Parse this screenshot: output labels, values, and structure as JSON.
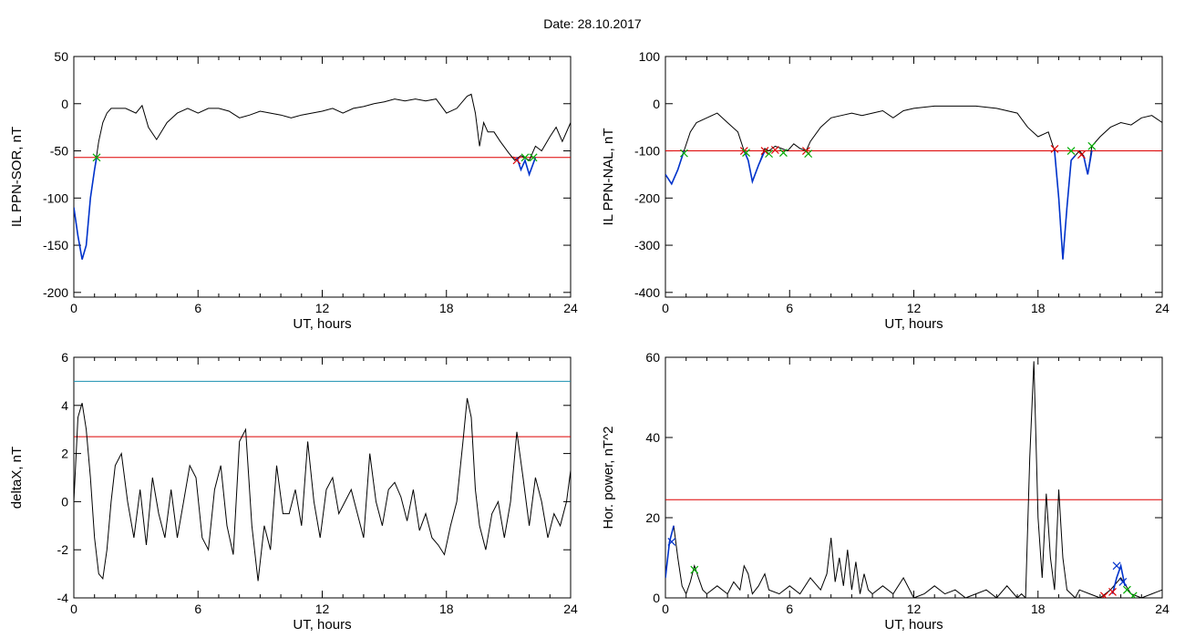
{
  "figure": {
    "title": "Date:  28.10.2017"
  },
  "chart_data": [
    {
      "id": "sor",
      "type": "line",
      "ylabel": "IL PPN-SOR, nT",
      "xlabel": "UT, hours",
      "xlim": [
        0,
        24
      ],
      "ylim": [
        -205,
        50
      ],
      "xticks": [
        0,
        6,
        12,
        18,
        24
      ],
      "yticks": [
        50,
        0,
        -50,
        -100,
        -150,
        -200
      ],
      "threshold": -57,
      "series": [
        {
          "color": "#000000",
          "x": [
            0,
            0.2,
            0.4,
            0.6,
            0.8,
            1.0,
            1.2,
            1.4,
            1.6,
            1.8,
            2.0,
            2.5,
            3.0,
            3.3,
            3.6,
            4.0,
            4.5,
            5.0,
            5.5,
            6.0,
            6.5,
            7.0,
            7.5,
            8.0,
            8.5,
            9.0,
            9.5,
            10,
            10.5,
            11,
            11.5,
            12,
            12.5,
            13,
            13.5,
            14,
            14.5,
            15,
            15.5,
            16,
            16.5,
            17,
            17.5,
            18,
            18.5,
            19,
            19.2,
            19.4,
            19.6,
            19.8,
            20,
            20.3,
            20.6,
            21,
            21.3,
            21.6,
            22,
            22.3,
            22.6,
            23,
            23.3,
            23.6,
            24
          ],
          "y": [
            -110,
            -140,
            -165,
            -150,
            -100,
            -70,
            -40,
            -20,
            -10,
            -5,
            -5,
            -5,
            -10,
            -2,
            -25,
            -38,
            -20,
            -10,
            -5,
            -10,
            -5,
            -5,
            -8,
            -15,
            -12,
            -8,
            -10,
            -12,
            -15,
            -12,
            -10,
            -8,
            -5,
            -10,
            -5,
            -3,
            0,
            2,
            5,
            3,
            5,
            3,
            5,
            -10,
            -5,
            8,
            10,
            -10,
            -45,
            -20,
            -30,
            -30,
            -40,
            -52,
            -60,
            -55,
            -60,
            -45,
            -50,
            -35,
            -25,
            -40,
            -20
          ]
        },
        {
          "color": "#0033cc",
          "x": [
            0,
            0.2,
            0.4,
            0.6,
            0.8,
            1.0,
            1.1
          ],
          "y": [
            -110,
            -140,
            -165,
            -150,
            -100,
            -70,
            -57
          ]
        },
        {
          "color": "#0033cc",
          "x": [
            21.4,
            21.6,
            21.8,
            22,
            22.3
          ],
          "y": [
            -57,
            -70,
            -60,
            -75,
            -57
          ]
        }
      ],
      "markers": [
        {
          "x": 1.1,
          "y": -57,
          "color": "#00aa00"
        },
        {
          "x": 21.4,
          "y": -60,
          "color": "#dd0000"
        },
        {
          "x": 21.8,
          "y": -57,
          "color": "#00aa00"
        },
        {
          "x": 22.2,
          "y": -57,
          "color": "#00aa00"
        }
      ]
    },
    {
      "id": "nal",
      "type": "line",
      "ylabel": "IL PPN-NAL, nT",
      "xlabel": "UT, hours",
      "xlim": [
        0,
        24
      ],
      "ylim": [
        -410,
        100
      ],
      "xticks": [
        0,
        6,
        12,
        18,
        24
      ],
      "yticks": [
        100,
        0,
        -100,
        -200,
        -300,
        -400
      ],
      "threshold": -100,
      "series": [
        {
          "color": "#000000",
          "x": [
            0,
            0.3,
            0.6,
            0.9,
            1.2,
            1.5,
            2.0,
            2.5,
            3.0,
            3.5,
            3.8,
            4.0,
            4.2,
            4.5,
            4.8,
            5.0,
            5.3,
            5.6,
            5.9,
            6.2,
            6.5,
            6.8,
            7.0,
            7.5,
            8.0,
            8.5,
            9.0,
            9.5,
            10,
            10.5,
            11,
            11.5,
            12,
            13,
            14,
            15,
            16,
            17,
            17.5,
            18,
            18.5,
            18.8,
            19.0,
            19.2,
            19.4,
            19.6,
            19.8,
            20.0,
            20.2,
            20.4,
            20.6,
            21,
            21.5,
            22,
            22.5,
            23,
            23.5,
            24
          ],
          "y": [
            -150,
            -170,
            -140,
            -100,
            -60,
            -40,
            -30,
            -20,
            -40,
            -60,
            -100,
            -120,
            -165,
            -130,
            -95,
            -100,
            -90,
            -95,
            -100,
            -85,
            -95,
            -100,
            -80,
            -50,
            -30,
            -25,
            -20,
            -25,
            -20,
            -15,
            -30,
            -15,
            -10,
            -5,
            -5,
            -5,
            -10,
            -20,
            -50,
            -70,
            -60,
            -100,
            -200,
            -330,
            -220,
            -120,
            -110,
            -100,
            -110,
            -150,
            -90,
            -70,
            -50,
            -40,
            -45,
            -30,
            -25,
            -40
          ]
        },
        {
          "color": "#0033cc",
          "x": [
            0,
            0.3,
            0.6,
            0.9
          ],
          "y": [
            -150,
            -170,
            -140,
            -100
          ]
        },
        {
          "color": "#0033cc",
          "x": [
            3.8,
            4.0,
            4.2,
            4.5,
            4.8
          ],
          "y": [
            -100,
            -120,
            -165,
            -130,
            -100
          ]
        },
        {
          "color": "#0033cc",
          "x": [
            18.8,
            19.0,
            19.2,
            19.4,
            19.6,
            19.8
          ],
          "y": [
            -100,
            -200,
            -330,
            -220,
            -120,
            -110
          ]
        },
        {
          "color": "#0033cc",
          "x": [
            20.2,
            20.4,
            20.6
          ],
          "y": [
            -110,
            -150,
            -100
          ]
        }
      ],
      "markers": [
        {
          "x": 0.9,
          "y": -105,
          "color": "#00aa00"
        },
        {
          "x": 3.8,
          "y": -100,
          "color": "#dd0000"
        },
        {
          "x": 3.9,
          "y": -104,
          "color": "#00aa00"
        },
        {
          "x": 4.8,
          "y": -100,
          "color": "#dd0000"
        },
        {
          "x": 5.0,
          "y": -106,
          "color": "#00aa00"
        },
        {
          "x": 5.3,
          "y": -98,
          "color": "#dd0000"
        },
        {
          "x": 5.7,
          "y": -104,
          "color": "#00aa00"
        },
        {
          "x": 6.8,
          "y": -100,
          "color": "#dd0000"
        },
        {
          "x": 6.9,
          "y": -106,
          "color": "#00aa00"
        },
        {
          "x": 18.8,
          "y": -96,
          "color": "#dd0000"
        },
        {
          "x": 19.6,
          "y": -100,
          "color": "#00aa00"
        },
        {
          "x": 20.1,
          "y": -108,
          "color": "#dd0000"
        },
        {
          "x": 20.6,
          "y": -90,
          "color": "#00aa00"
        }
      ]
    },
    {
      "id": "deltax",
      "type": "line",
      "ylabel": "deltaX, nT",
      "xlabel": "UT, hours",
      "xlim": [
        0,
        24
      ],
      "ylim": [
        -4,
        6
      ],
      "xticks": [
        0,
        6,
        12,
        18,
        24
      ],
      "yticks": [
        6,
        4,
        2,
        0,
        -2,
        -4
      ],
      "threshold": 2.7,
      "threshold2": 5.0,
      "series": [
        {
          "color": "#000000",
          "x": [
            0,
            0.2,
            0.4,
            0.6,
            0.8,
            1.0,
            1.2,
            1.4,
            1.6,
            1.8,
            2.0,
            2.3,
            2.6,
            2.9,
            3.2,
            3.5,
            3.8,
            4.1,
            4.4,
            4.7,
            5.0,
            5.3,
            5.6,
            5.9,
            6.2,
            6.5,
            6.8,
            7.1,
            7.4,
            7.7,
            8.0,
            8.3,
            8.6,
            8.9,
            9.2,
            9.5,
            9.8,
            10.1,
            10.4,
            10.7,
            11.0,
            11.3,
            11.6,
            11.9,
            12.2,
            12.5,
            12.8,
            13.1,
            13.4,
            13.7,
            14.0,
            14.3,
            14.6,
            14.9,
            15.2,
            15.5,
            15.8,
            16.1,
            16.4,
            16.7,
            17.0,
            17.3,
            17.6,
            17.9,
            18.2,
            18.5,
            18.8,
            19.0,
            19.2,
            19.4,
            19.6,
            19.9,
            20.2,
            20.5,
            20.8,
            21.1,
            21.4,
            21.7,
            22.0,
            22.3,
            22.6,
            22.9,
            23.2,
            23.5,
            23.8,
            24
          ],
          "y": [
            0,
            3.5,
            4.1,
            3.0,
            1.0,
            -1.5,
            -3.0,
            -3.2,
            -2.0,
            0,
            1.5,
            2.0,
            0,
            -1.5,
            0.5,
            -1.8,
            1.0,
            -0.5,
            -1.5,
            0.5,
            -1.5,
            0,
            1.5,
            1.0,
            -1.5,
            -2.0,
            0.5,
            1.5,
            -1.0,
            -2.2,
            2.5,
            3.0,
            -1.0,
            -3.3,
            -1.0,
            -2.0,
            1.5,
            -0.5,
            -0.5,
            0.5,
            -1.0,
            2.5,
            0,
            -1.5,
            0.5,
            1.0,
            -0.5,
            0,
            0.5,
            -0.5,
            -1.5,
            2.0,
            0,
            -1.0,
            0.5,
            0.8,
            0.2,
            -0.8,
            0.5,
            -1.2,
            -0.5,
            -1.5,
            -1.8,
            -2.2,
            -1.0,
            0,
            2.5,
            4.3,
            3.5,
            0.5,
            -1.0,
            -2.0,
            -0.5,
            0,
            -1.5,
            0,
            2.9,
            1.0,
            -1.0,
            1.0,
            0,
            -1.5,
            -0.5,
            -1.0,
            0,
            1.3
          ]
        }
      ],
      "markers": []
    },
    {
      "id": "horpower",
      "type": "line",
      "ylabel": "Hor. power, nT^2",
      "xlabel": "UT, hours",
      "xlim": [
        0,
        24
      ],
      "ylim": [
        0,
        60
      ],
      "xticks": [
        0,
        6,
        12,
        18,
        24
      ],
      "yticks": [
        0,
        20,
        40,
        60
      ],
      "threshold": 24.5,
      "series": [
        {
          "color": "#000000",
          "x": [
            0,
            0.2,
            0.4,
            0.6,
            0.8,
            1.0,
            1.2,
            1.4,
            1.6,
            1.8,
            2.0,
            2.5,
            3.0,
            3.3,
            3.6,
            3.8,
            4.0,
            4.2,
            4.5,
            4.8,
            5.0,
            5.5,
            6.0,
            6.5,
            7.0,
            7.5,
            7.8,
            8.0,
            8.2,
            8.4,
            8.6,
            8.8,
            9.0,
            9.2,
            9.4,
            9.6,
            9.8,
            10,
            10.5,
            11,
            11.5,
            12,
            12.5,
            13,
            13.5,
            14,
            14.5,
            15,
            15.5,
            16,
            16.5,
            17,
            17.2,
            17.4,
            17.6,
            17.8,
            18.0,
            18.2,
            18.4,
            18.6,
            18.8,
            19.0,
            19.2,
            19.4,
            19.6,
            19.8,
            20,
            20.5,
            21,
            21.5,
            22,
            22.5,
            23,
            23.5,
            24
          ],
          "y": [
            5,
            14,
            18,
            10,
            3,
            1,
            4,
            8,
            5,
            2,
            1,
            3,
            1,
            4,
            2,
            8,
            6,
            1,
            3,
            6,
            2,
            1,
            3,
            1,
            5,
            2,
            6,
            15,
            4,
            10,
            3,
            12,
            2,
            9,
            1,
            6,
            2,
            1,
            3,
            1,
            5,
            0,
            1,
            3,
            1,
            2,
            0,
            1,
            2,
            0,
            3,
            0,
            1,
            0,
            35,
            59,
            20,
            5,
            26,
            10,
            2,
            27,
            10,
            2,
            1,
            0,
            2,
            1,
            0,
            2,
            5,
            1,
            0,
            1,
            2
          ]
        },
        {
          "color": "#0033cc",
          "x": [
            0,
            0.2,
            0.4
          ],
          "y": [
            5,
            14,
            18
          ]
        },
        {
          "color": "#0033cc",
          "x": [
            21.6,
            21.8,
            22.0,
            22.2
          ],
          "y": [
            1,
            5,
            8,
            3
          ]
        }
      ],
      "markers": [
        {
          "x": 0.3,
          "y": 14,
          "color": "#0033cc"
        },
        {
          "x": 1.4,
          "y": 7,
          "color": "#00aa00"
        },
        {
          "x": 21.2,
          "y": 0.5,
          "color": "#dd0000"
        },
        {
          "x": 21.6,
          "y": 1.5,
          "color": "#dd0000"
        },
        {
          "x": 21.8,
          "y": 8,
          "color": "#0033cc"
        },
        {
          "x": 22.1,
          "y": 4,
          "color": "#0033cc"
        },
        {
          "x": 22.3,
          "y": 2,
          "color": "#00aa00"
        },
        {
          "x": 22.6,
          "y": 0.5,
          "color": "#00aa00"
        }
      ]
    }
  ],
  "colors": {
    "threshold": "#dd0000",
    "threshold2": "#1a8fb0",
    "axis": "#000000"
  }
}
